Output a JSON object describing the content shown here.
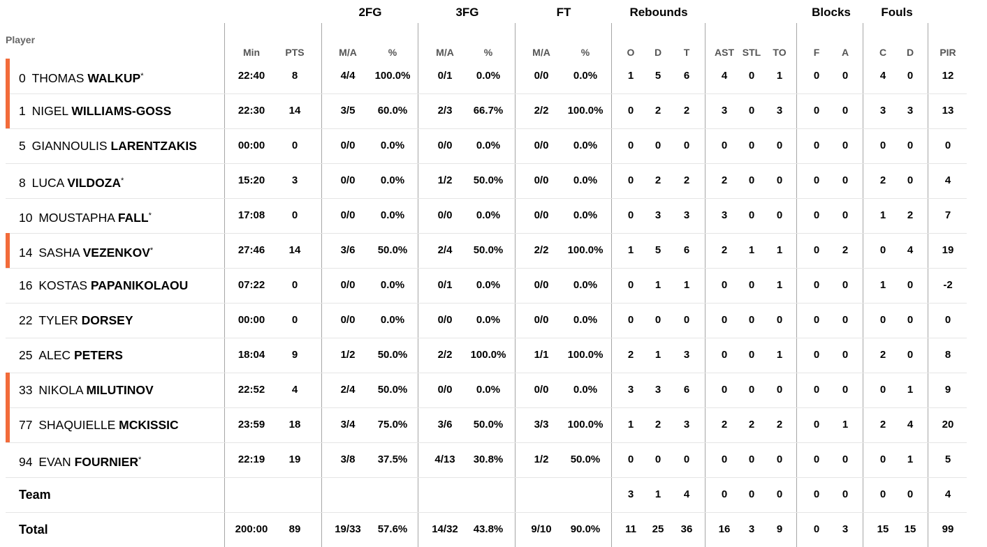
{
  "groups": [
    "2FG",
    "3FG",
    "FT",
    "Rebounds",
    "Blocks",
    "Fouls"
  ],
  "player_label": "Player",
  "subheaders": [
    "Min",
    "PTS",
    "M/A",
    "%",
    "M/A",
    "%",
    "M/A",
    "%",
    "O",
    "D",
    "T",
    "AST",
    "STL",
    "TO",
    "F",
    "A",
    "C",
    "D",
    "PIR"
  ],
  "starter_mark": "*",
  "rows": [
    {
      "num": "0",
      "first": "THOMAS",
      "last": "WALKUP",
      "starter": true,
      "highlight": true,
      "stats": [
        "22:40",
        "8",
        "4/4",
        "100.0%",
        "0/1",
        "0.0%",
        "0/0",
        "0.0%",
        "1",
        "5",
        "6",
        "4",
        "0",
        "1",
        "0",
        "0",
        "4",
        "0",
        "12"
      ]
    },
    {
      "num": "1",
      "first": "NIGEL",
      "last": "WILLIAMS-GOSS",
      "starter": false,
      "highlight": true,
      "stats": [
        "22:30",
        "14",
        "3/5",
        "60.0%",
        "2/3",
        "66.7%",
        "2/2",
        "100.0%",
        "0",
        "2",
        "2",
        "3",
        "0",
        "3",
        "0",
        "0",
        "3",
        "3",
        "13"
      ]
    },
    {
      "num": "5",
      "first": "GIANNOULIS",
      "last": "LARENTZAKIS",
      "starter": false,
      "highlight": false,
      "stats": [
        "00:00",
        "0",
        "0/0",
        "0.0%",
        "0/0",
        "0.0%",
        "0/0",
        "0.0%",
        "0",
        "0",
        "0",
        "0",
        "0",
        "0",
        "0",
        "0",
        "0",
        "0",
        "0"
      ]
    },
    {
      "num": "8",
      "first": "LUCA",
      "last": "VILDOZA",
      "starter": true,
      "highlight": false,
      "stats": [
        "15:20",
        "3",
        "0/0",
        "0.0%",
        "1/2",
        "50.0%",
        "0/0",
        "0.0%",
        "0",
        "2",
        "2",
        "2",
        "0",
        "0",
        "0",
        "0",
        "2",
        "0",
        "4"
      ]
    },
    {
      "num": "10",
      "first": "MOUSTAPHA",
      "last": "FALL",
      "starter": true,
      "highlight": false,
      "stats": [
        "17:08",
        "0",
        "0/0",
        "0.0%",
        "0/0",
        "0.0%",
        "0/0",
        "0.0%",
        "0",
        "3",
        "3",
        "3",
        "0",
        "0",
        "0",
        "0",
        "1",
        "2",
        "7"
      ]
    },
    {
      "num": "14",
      "first": "SASHA",
      "last": "VEZENKOV",
      "starter": true,
      "highlight": true,
      "stats": [
        "27:46",
        "14",
        "3/6",
        "50.0%",
        "2/4",
        "50.0%",
        "2/2",
        "100.0%",
        "1",
        "5",
        "6",
        "2",
        "1",
        "1",
        "0",
        "2",
        "0",
        "4",
        "19"
      ]
    },
    {
      "num": "16",
      "first": "KOSTAS",
      "last": "PAPANIKOLAOU",
      "starter": false,
      "highlight": false,
      "stats": [
        "07:22",
        "0",
        "0/0",
        "0.0%",
        "0/1",
        "0.0%",
        "0/0",
        "0.0%",
        "0",
        "1",
        "1",
        "0",
        "0",
        "1",
        "0",
        "0",
        "1",
        "0",
        "-2"
      ]
    },
    {
      "num": "22",
      "first": "TYLER",
      "last": "DORSEY",
      "starter": false,
      "highlight": false,
      "stats": [
        "00:00",
        "0",
        "0/0",
        "0.0%",
        "0/0",
        "0.0%",
        "0/0",
        "0.0%",
        "0",
        "0",
        "0",
        "0",
        "0",
        "0",
        "0",
        "0",
        "0",
        "0",
        "0"
      ]
    },
    {
      "num": "25",
      "first": "ALEC",
      "last": "PETERS",
      "starter": false,
      "highlight": false,
      "stats": [
        "18:04",
        "9",
        "1/2",
        "50.0%",
        "2/2",
        "100.0%",
        "1/1",
        "100.0%",
        "2",
        "1",
        "3",
        "0",
        "0",
        "1",
        "0",
        "0",
        "2",
        "0",
        "8"
      ]
    },
    {
      "num": "33",
      "first": "NIKOLA",
      "last": "MILUTINOV",
      "starter": false,
      "highlight": true,
      "stats": [
        "22:52",
        "4",
        "2/4",
        "50.0%",
        "0/0",
        "0.0%",
        "0/0",
        "0.0%",
        "3",
        "3",
        "6",
        "0",
        "0",
        "0",
        "0",
        "0",
        "0",
        "1",
        "9"
      ]
    },
    {
      "num": "77",
      "first": "SHAQUIELLE",
      "last": "MCKISSIC",
      "starter": false,
      "highlight": true,
      "stats": [
        "23:59",
        "18",
        "3/4",
        "75.0%",
        "3/6",
        "50.0%",
        "3/3",
        "100.0%",
        "1",
        "2",
        "3",
        "2",
        "2",
        "2",
        "0",
        "1",
        "2",
        "4",
        "20"
      ]
    },
    {
      "num": "94",
      "first": "EVAN",
      "last": "FOURNIER",
      "starter": true,
      "highlight": false,
      "stats": [
        "22:19",
        "19",
        "3/8",
        "37.5%",
        "4/13",
        "30.8%",
        "1/2",
        "50.0%",
        "0",
        "0",
        "0",
        "0",
        "0",
        "0",
        "0",
        "0",
        "0",
        "1",
        "5"
      ]
    }
  ],
  "team_row": {
    "label": "Team",
    "stats": [
      "",
      "",
      "",
      "",
      "",
      "",
      "",
      "",
      "3",
      "1",
      "4",
      "0",
      "0",
      "0",
      "0",
      "0",
      "0",
      "0",
      "4"
    ]
  },
  "total_row": {
    "label": "Total",
    "stats": [
      "200:00",
      "89",
      "19/33",
      "57.6%",
      "14/32",
      "43.8%",
      "9/10",
      "90.0%",
      "11",
      "25",
      "36",
      "16",
      "3",
      "9",
      "0",
      "3",
      "15",
      "15",
      "99"
    ]
  },
  "colors": {
    "accent": "#f26b3a",
    "divider": "#a6a6a6",
    "row_border": "#e5e5e5"
  }
}
